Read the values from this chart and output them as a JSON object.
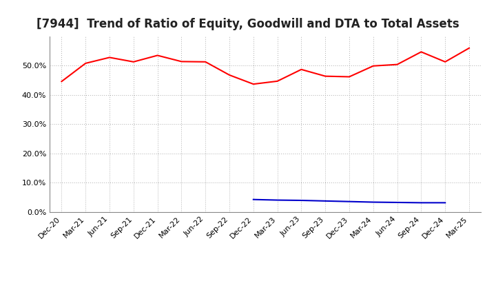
{
  "title": "[7944]  Trend of Ratio of Equity, Goodwill and DTA to Total Assets",
  "x_labels": [
    "Dec-20",
    "Mar-21",
    "Jun-21",
    "Sep-21",
    "Dec-21",
    "Mar-22",
    "Jun-22",
    "Sep-22",
    "Dec-22",
    "Mar-23",
    "Jun-23",
    "Sep-23",
    "Dec-23",
    "Mar-24",
    "Jun-24",
    "Sep-24",
    "Dec-24",
    "Mar-25"
  ],
  "equity": [
    0.446,
    0.508,
    0.528,
    0.513,
    0.535,
    0.514,
    0.513,
    0.468,
    0.437,
    0.447,
    0.487,
    0.464,
    0.462,
    0.499,
    0.504,
    0.547,
    0.513,
    0.56
  ],
  "goodwill": [
    null,
    null,
    null,
    null,
    null,
    null,
    null,
    null,
    0.043,
    0.041,
    0.04,
    0.038,
    0.036,
    0.034,
    0.033,
    0.032,
    0.032,
    null
  ],
  "dta": [
    null,
    null,
    null,
    null,
    null,
    null,
    null,
    null,
    null,
    null,
    null,
    null,
    null,
    null,
    null,
    null,
    null,
    null
  ],
  "equity_color": "#ff0000",
  "goodwill_color": "#0000cc",
  "dta_color": "#008000",
  "ylim": [
    0.0,
    0.6
  ],
  "yticks": [
    0.0,
    0.1,
    0.2,
    0.3,
    0.4,
    0.5
  ],
  "background_color": "#ffffff",
  "grid_color": "#aaaaaa",
  "title_fontsize": 12,
  "tick_fontsize": 8,
  "legend_fontsize": 9
}
